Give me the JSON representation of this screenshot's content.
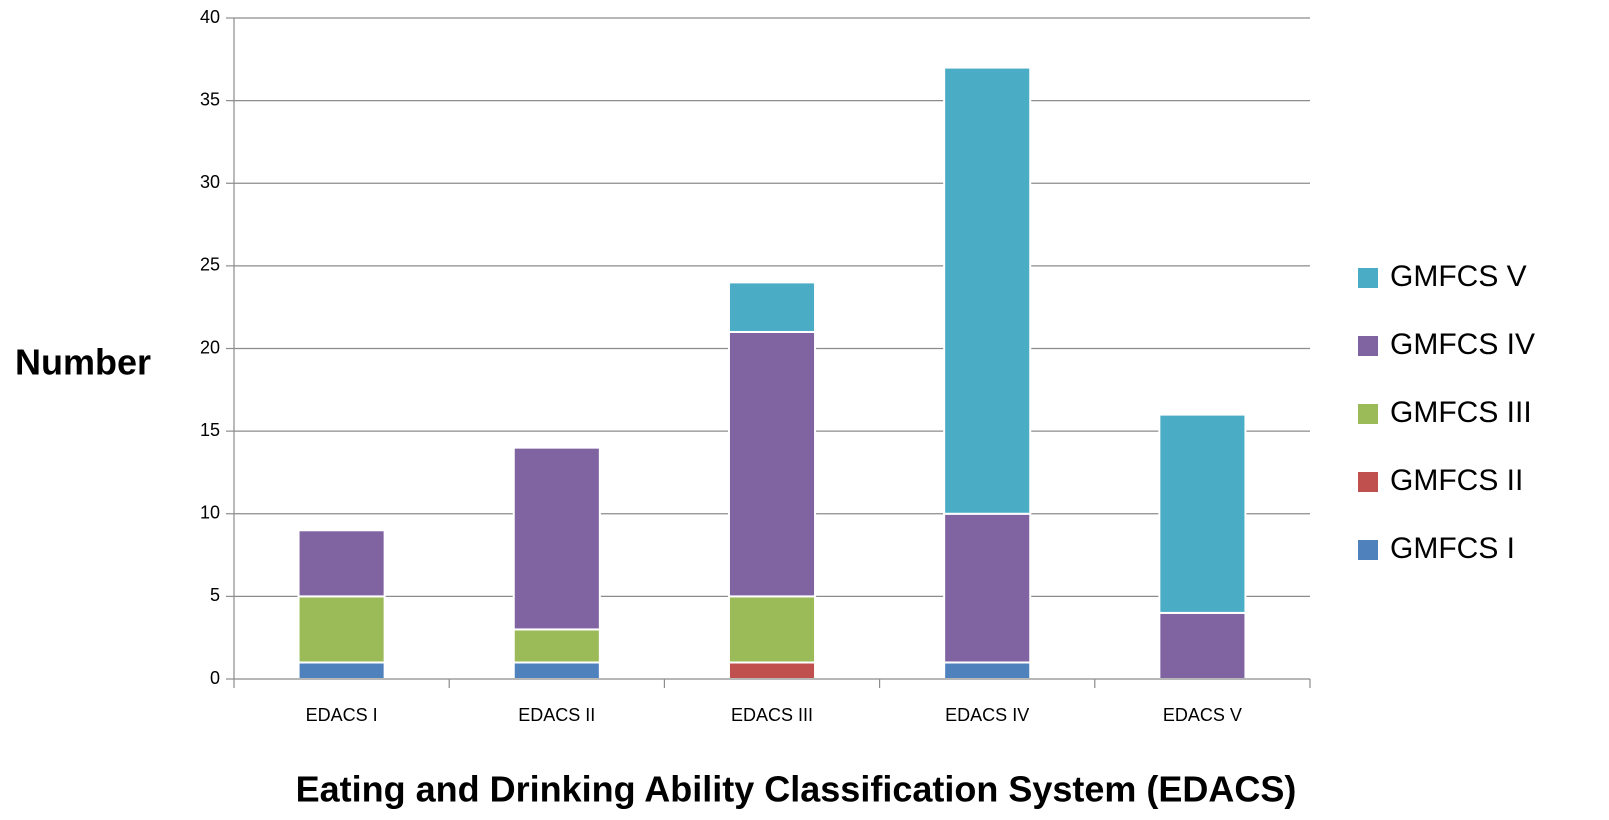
{
  "chart_data": {
    "type": "bar",
    "stacked": true,
    "title": "",
    "xlabel": "Eating and Drinking Ability Classification System (EDACS)",
    "ylabel": "Number",
    "ylim": [
      0,
      40
    ],
    "yticks": [
      0,
      5,
      10,
      15,
      20,
      25,
      30,
      35,
      40
    ],
    "grid": true,
    "legend_position": "right",
    "categories": [
      "EDACS I",
      "EDACS II",
      "EDACS III",
      "EDACS IV",
      "EDACS V"
    ],
    "series": [
      {
        "name": "GMFCS I",
        "color": "#4F81BD",
        "values": [
          1,
          1,
          0,
          1,
          0
        ]
      },
      {
        "name": "GMFCS II",
        "color": "#C0504D",
        "values": [
          0,
          0,
          1,
          0,
          0
        ]
      },
      {
        "name": "GMFCS III",
        "color": "#9BBB59",
        "values": [
          4,
          2,
          4,
          0,
          0
        ]
      },
      {
        "name": "GMFCS IV",
        "color": "#8064A2",
        "values": [
          4,
          11,
          16,
          9,
          4
        ]
      },
      {
        "name": "GMFCS V",
        "color": "#4BACC6",
        "values": [
          0,
          0,
          3,
          27,
          12
        ]
      }
    ],
    "legend_order": [
      "GMFCS V",
      "GMFCS IV",
      "GMFCS III",
      "GMFCS II",
      "GMFCS I"
    ]
  }
}
